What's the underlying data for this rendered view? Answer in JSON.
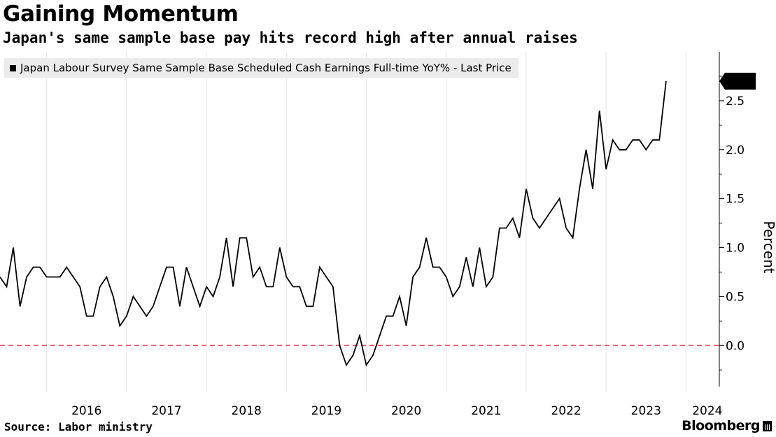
{
  "chart_data": {
    "type": "line",
    "title": "Gaining Momentum",
    "subtitle": "Japan's same sample base pay hits record high after annual raises",
    "ylabel": "Percent",
    "ylim": [
      -0.42,
      3.0
    ],
    "xlim": [
      "2015-06",
      "2024-06"
    ],
    "yticks": [
      "2.5",
      "2.0",
      "1.5",
      "1.0",
      "0.5",
      "0.0"
    ],
    "xticks": [
      "2016",
      "2017",
      "2018",
      "2019",
      "2020",
      "2021",
      "2022",
      "2023",
      "2024"
    ],
    "reference_line": {
      "y": 0.0,
      "color": "#f04e6d",
      "style": "dashed"
    },
    "legend": {
      "position": "top-left"
    },
    "grid": {
      "vertical": true,
      "horizontal": false
    },
    "last_value_label": "2.7",
    "series": [
      {
        "name": "Japan Labour Survey Same Sample Base Scheduled Cash Earnings Full-time YoY% - Last Price",
        "color": "#000000",
        "points": [
          [
            "2015-06",
            0.7
          ],
          [
            "2015-07",
            0.6
          ],
          [
            "2015-08",
            1.0
          ],
          [
            "2015-09",
            0.4
          ],
          [
            "2015-10",
            0.7
          ],
          [
            "2015-11",
            0.8
          ],
          [
            "2015-12",
            0.8
          ],
          [
            "2016-01",
            0.7
          ],
          [
            "2016-02",
            0.7
          ],
          [
            "2016-03",
            0.7
          ],
          [
            "2016-04",
            0.8
          ],
          [
            "2016-05",
            0.7
          ],
          [
            "2016-06",
            0.6
          ],
          [
            "2016-07",
            0.3
          ],
          [
            "2016-08",
            0.3
          ],
          [
            "2016-09",
            0.6
          ],
          [
            "2016-10",
            0.7
          ],
          [
            "2016-11",
            0.5
          ],
          [
            "2016-12",
            0.2
          ],
          [
            "2017-01",
            0.3
          ],
          [
            "2017-02",
            0.5
          ],
          [
            "2017-03",
            0.4
          ],
          [
            "2017-04",
            0.3
          ],
          [
            "2017-05",
            0.4
          ],
          [
            "2017-06",
            0.6
          ],
          [
            "2017-07",
            0.8
          ],
          [
            "2017-08",
            0.8
          ],
          [
            "2017-09",
            0.4
          ],
          [
            "2017-10",
            0.8
          ],
          [
            "2017-11",
            0.6
          ],
          [
            "2017-12",
            0.4
          ],
          [
            "2018-01",
            0.6
          ],
          [
            "2018-02",
            0.5
          ],
          [
            "2018-03",
            0.7
          ],
          [
            "2018-04",
            1.1
          ],
          [
            "2018-05",
            0.6
          ],
          [
            "2018-06",
            1.1
          ],
          [
            "2018-07",
            1.1
          ],
          [
            "2018-08",
            0.7
          ],
          [
            "2018-09",
            0.8
          ],
          [
            "2018-10",
            0.6
          ],
          [
            "2018-11",
            0.6
          ],
          [
            "2018-12",
            1.0
          ],
          [
            "2019-01",
            0.7
          ],
          [
            "2019-02",
            0.6
          ],
          [
            "2019-03",
            0.6
          ],
          [
            "2019-04",
            0.4
          ],
          [
            "2019-05",
            0.4
          ],
          [
            "2019-06",
            0.8
          ],
          [
            "2019-07",
            0.7
          ],
          [
            "2019-08",
            0.6
          ],
          [
            "2019-09",
            0.0
          ],
          [
            "2019-10",
            -0.2
          ],
          [
            "2019-11",
            -0.1
          ],
          [
            "2019-12",
            0.1
          ],
          [
            "2020-01",
            -0.2
          ],
          [
            "2020-02",
            -0.1
          ],
          [
            "2020-03",
            0.1
          ],
          [
            "2020-04",
            0.3
          ],
          [
            "2020-05",
            0.3
          ],
          [
            "2020-06",
            0.5
          ],
          [
            "2020-07",
            0.2
          ],
          [
            "2020-08",
            0.7
          ],
          [
            "2020-09",
            0.8
          ],
          [
            "2020-10",
            1.1
          ],
          [
            "2020-11",
            0.8
          ],
          [
            "2020-12",
            0.8
          ],
          [
            "2021-01",
            0.7
          ],
          [
            "2021-02",
            0.5
          ],
          [
            "2021-03",
            0.6
          ],
          [
            "2021-04",
            0.9
          ],
          [
            "2021-05",
            0.6
          ],
          [
            "2021-06",
            1.0
          ],
          [
            "2021-07",
            0.6
          ],
          [
            "2021-08",
            0.7
          ],
          [
            "2021-09",
            1.2
          ],
          [
            "2021-10",
            1.2
          ],
          [
            "2021-11",
            1.3
          ],
          [
            "2021-12",
            1.1
          ],
          [
            "2022-01",
            1.6
          ],
          [
            "2022-02",
            1.3
          ],
          [
            "2022-03",
            1.2
          ],
          [
            "2022-04",
            1.3
          ],
          [
            "2022-05",
            1.4
          ],
          [
            "2022-06",
            1.5
          ],
          [
            "2022-07",
            1.2
          ],
          [
            "2022-08",
            1.1
          ],
          [
            "2022-09",
            1.6
          ],
          [
            "2022-10",
            2.0
          ],
          [
            "2022-11",
            1.6
          ],
          [
            "2022-12",
            2.4
          ],
          [
            "2023-01",
            1.8
          ],
          [
            "2023-02",
            2.1
          ],
          [
            "2023-03",
            2.0
          ],
          [
            "2023-04",
            2.0
          ],
          [
            "2023-05",
            2.1
          ],
          [
            "2023-06",
            2.1
          ],
          [
            "2023-07",
            2.0
          ],
          [
            "2023-08",
            2.1
          ],
          [
            "2023-09",
            2.1
          ],
          [
            "2023-10",
            2.7
          ]
        ]
      }
    ]
  },
  "footer": {
    "source": "Source: Labor ministry",
    "brand": "Bloomberg"
  }
}
